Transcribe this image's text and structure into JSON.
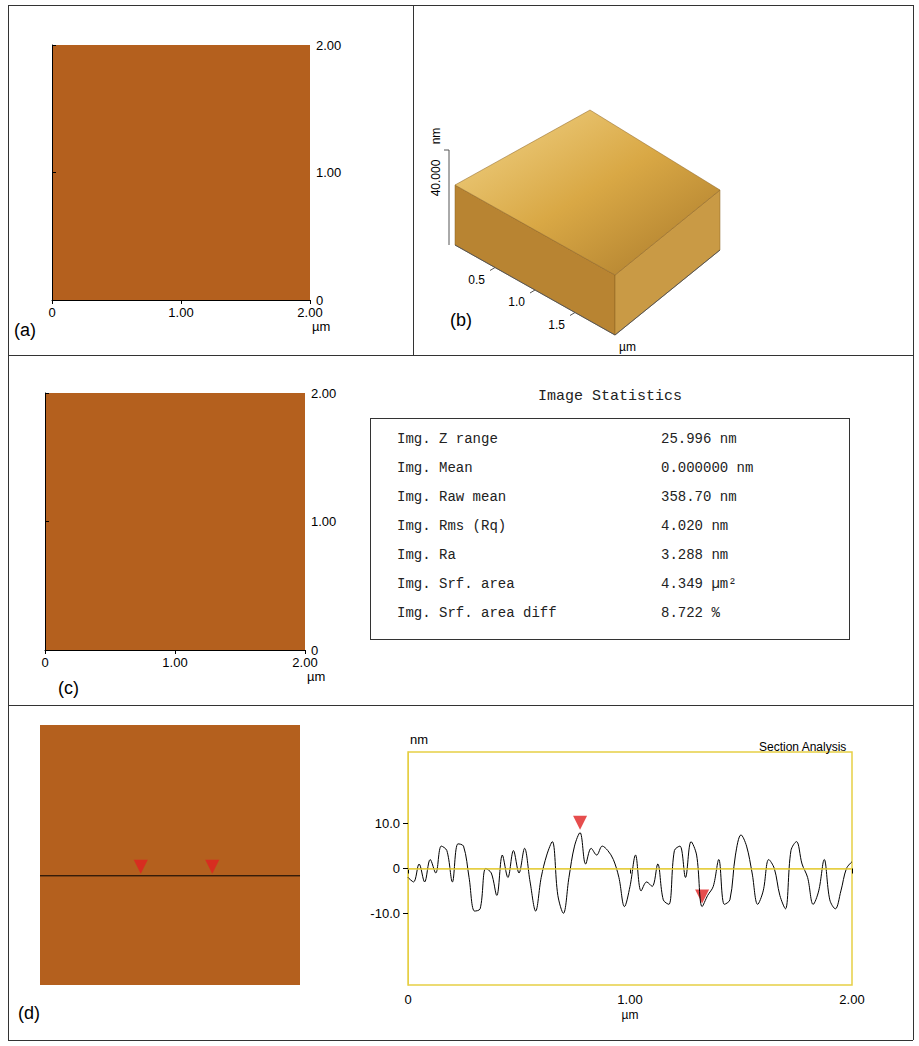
{
  "chart_data": [
    {
      "type": "image",
      "label": "(a)",
      "xlim": [
        0,
        2
      ],
      "ylim": [
        0,
        2
      ],
      "xticks": [
        0,
        {
          "value": 1,
          "label": "1.00"
        },
        {
          "value": 2,
          "label": "2.00"
        }
      ],
      "yticks": [
        0,
        {
          "value": 1,
          "label": "1.00"
        },
        {
          "value": 2,
          "label": "2.00"
        }
      ],
      "unit": "µm",
      "color": "#b4601e"
    },
    {
      "type": "surface3d",
      "label": "(b)",
      "xlim": [
        0,
        2
      ],
      "xticks": [
        0.5,
        {
          "value": 1,
          "label": "1.0"
        },
        1.5
      ],
      "unit": "µm",
      "zlim": [
        0,
        40
      ],
      "zticks": [
        {
          "value": 40,
          "label": "40.000"
        }
      ],
      "zlabel": "nm",
      "color": "#d9a845"
    },
    {
      "type": "image",
      "label": "(c)",
      "xlim": [
        0,
        2
      ],
      "ylim": [
        0,
        2
      ],
      "xticks": [
        0,
        {
          "value": 1,
          "label": "1.00"
        },
        {
          "value": 2,
          "label": "2.00"
        }
      ],
      "yticks": [
        0,
        {
          "value": 1,
          "label": "1.00"
        },
        {
          "value": 2,
          "label": "2.00"
        }
      ],
      "unit": "µm",
      "color": "#b4601e"
    },
    {
      "type": "table",
      "title": "Image Statistics",
      "rows": [
        [
          "Img. Z range",
          "25.996 nm"
        ],
        [
          "Img. Mean",
          "0.000000 nm"
        ],
        [
          "Img. Raw mean",
          "358.70 nm"
        ],
        [
          "Img. Rms (Rq)",
          "4.020 nm"
        ],
        [
          "Img. Ra",
          "3.288 nm"
        ],
        [
          "Img. Srf. area",
          "4.349 µm²"
        ],
        [
          "Img. Srf. area diff",
          "8.722 %"
        ]
      ]
    },
    {
      "type": "image",
      "label": "(d)",
      "xlim": [
        0,
        2
      ],
      "ylim": [
        0,
        2
      ],
      "tick_labels": false,
      "color": "#b4601e",
      "section_y": 0.84
    },
    {
      "type": "line",
      "title": "Section Analysis",
      "xlabel": "µm",
      "ylabel": "nm",
      "xlim": [
        0,
        2
      ],
      "ylim": [
        -26,
        26
      ],
      "xticks": [
        0,
        {
          "value": 1,
          "label": "1.00"
        },
        {
          "value": 2,
          "label": "2.00"
        }
      ],
      "yticks": [
        {
          "value": -10,
          "label": "-10.0"
        },
        0,
        {
          "value": 10,
          "label": "10.0"
        }
      ],
      "color": "#000000",
      "reference_line": 0,
      "x": [
        0,
        0.025,
        0.05,
        0.075,
        0.1,
        0.125,
        0.15,
        0.175,
        0.2,
        0.225,
        0.25,
        0.275,
        0.3,
        0.325,
        0.35,
        0.375,
        0.4,
        0.425,
        0.45,
        0.475,
        0.5,
        0.525,
        0.55,
        0.575,
        0.6,
        0.625,
        0.65,
        0.675,
        0.7,
        0.725,
        0.75,
        0.775,
        0.8,
        0.825,
        0.85,
        0.875,
        0.9,
        0.925,
        0.95,
        0.975,
        1,
        1.025,
        1.05,
        1.075,
        1.1,
        1.125,
        1.15,
        1.175,
        1.2,
        1.225,
        1.25,
        1.275,
        1.3,
        1.325,
        1.35,
        1.375,
        1.4,
        1.425,
        1.45,
        1.475,
        1.5,
        1.525,
        1.55,
        1.575,
        1.6,
        1.625,
        1.65,
        1.675,
        1.7,
        1.725,
        1.75,
        1.775,
        1.8,
        1.825,
        1.85,
        1.875,
        1.9,
        1.925,
        1.95,
        1.975,
        2
      ],
      "values": [
        -2,
        -3,
        1,
        -3,
        2,
        -1,
        5,
        4,
        -3,
        5.5,
        5,
        -2,
        -9.5,
        -9,
        0,
        -1,
        -6,
        3,
        -2,
        4,
        -1,
        4.5,
        -3,
        -9.5,
        -2,
        3,
        6,
        -6,
        -10,
        -2,
        5,
        8,
        1,
        4.5,
        3,
        5,
        4,
        2,
        -2,
        -8.5,
        -4,
        3,
        -5,
        -3,
        -4,
        1,
        -7,
        -8,
        4,
        5,
        -2,
        6,
        3,
        -8.5,
        -6,
        -4,
        2,
        -8,
        -7,
        3,
        7.5,
        5,
        -1,
        -8,
        -5,
        2,
        0,
        -6,
        -9,
        4,
        6,
        1,
        -2,
        -8,
        -5,
        2,
        -7,
        -9,
        -5,
        0,
        1.5
      ],
      "markers": {
        "x": [
          0.775,
          1.325
        ],
        "y": [
          8,
          -8.5
        ],
        "color": "#e02020"
      }
    }
  ]
}
